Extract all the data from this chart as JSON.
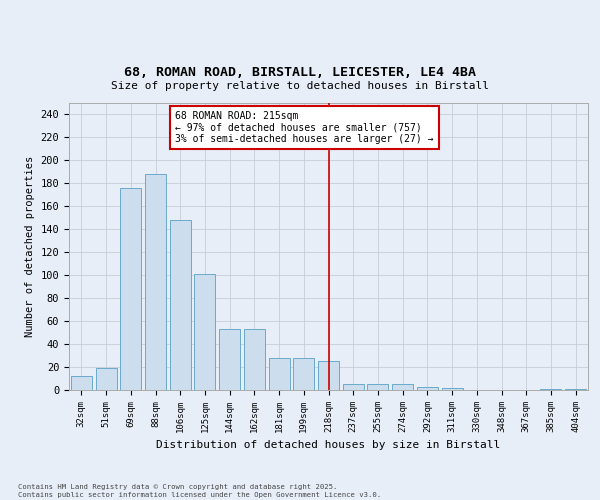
{
  "title_line1": "68, ROMAN ROAD, BIRSTALL, LEICESTER, LE4 4BA",
  "title_line2": "Size of property relative to detached houses in Birstall",
  "xlabel": "Distribution of detached houses by size in Birstall",
  "ylabel": "Number of detached properties",
  "categories": [
    "32sqm",
    "51sqm",
    "69sqm",
    "88sqm",
    "106sqm",
    "125sqm",
    "144sqm",
    "162sqm",
    "181sqm",
    "199sqm",
    "218sqm",
    "237sqm",
    "255sqm",
    "274sqm",
    "292sqm",
    "311sqm",
    "330sqm",
    "348sqm",
    "367sqm",
    "385sqm",
    "404sqm"
  ],
  "values": [
    12,
    19,
    176,
    188,
    148,
    101,
    53,
    53,
    28,
    28,
    25,
    5,
    5,
    5,
    3,
    2,
    0,
    0,
    0,
    1,
    1
  ],
  "bar_color": "#ccdded",
  "bar_edge_color": "#6aaacb",
  "bg_color": "#e8eef8",
  "grid_color": "#c8ccd8",
  "vline_x": 10,
  "vline_color": "#cc0000",
  "annotation_text": "68 ROMAN ROAD: 215sqm\n← 97% of detached houses are smaller (757)\n3% of semi-detached houses are larger (27) →",
  "annotation_box_color": "#cc0000",
  "footer_text": "Contains HM Land Registry data © Crown copyright and database right 2025.\nContains public sector information licensed under the Open Government Licence v3.0.",
  "ylim": [
    0,
    250
  ],
  "yticks": [
    0,
    20,
    40,
    60,
    80,
    100,
    120,
    140,
    160,
    180,
    200,
    220,
    240
  ],
  "fig_bg": "#e8eef8"
}
